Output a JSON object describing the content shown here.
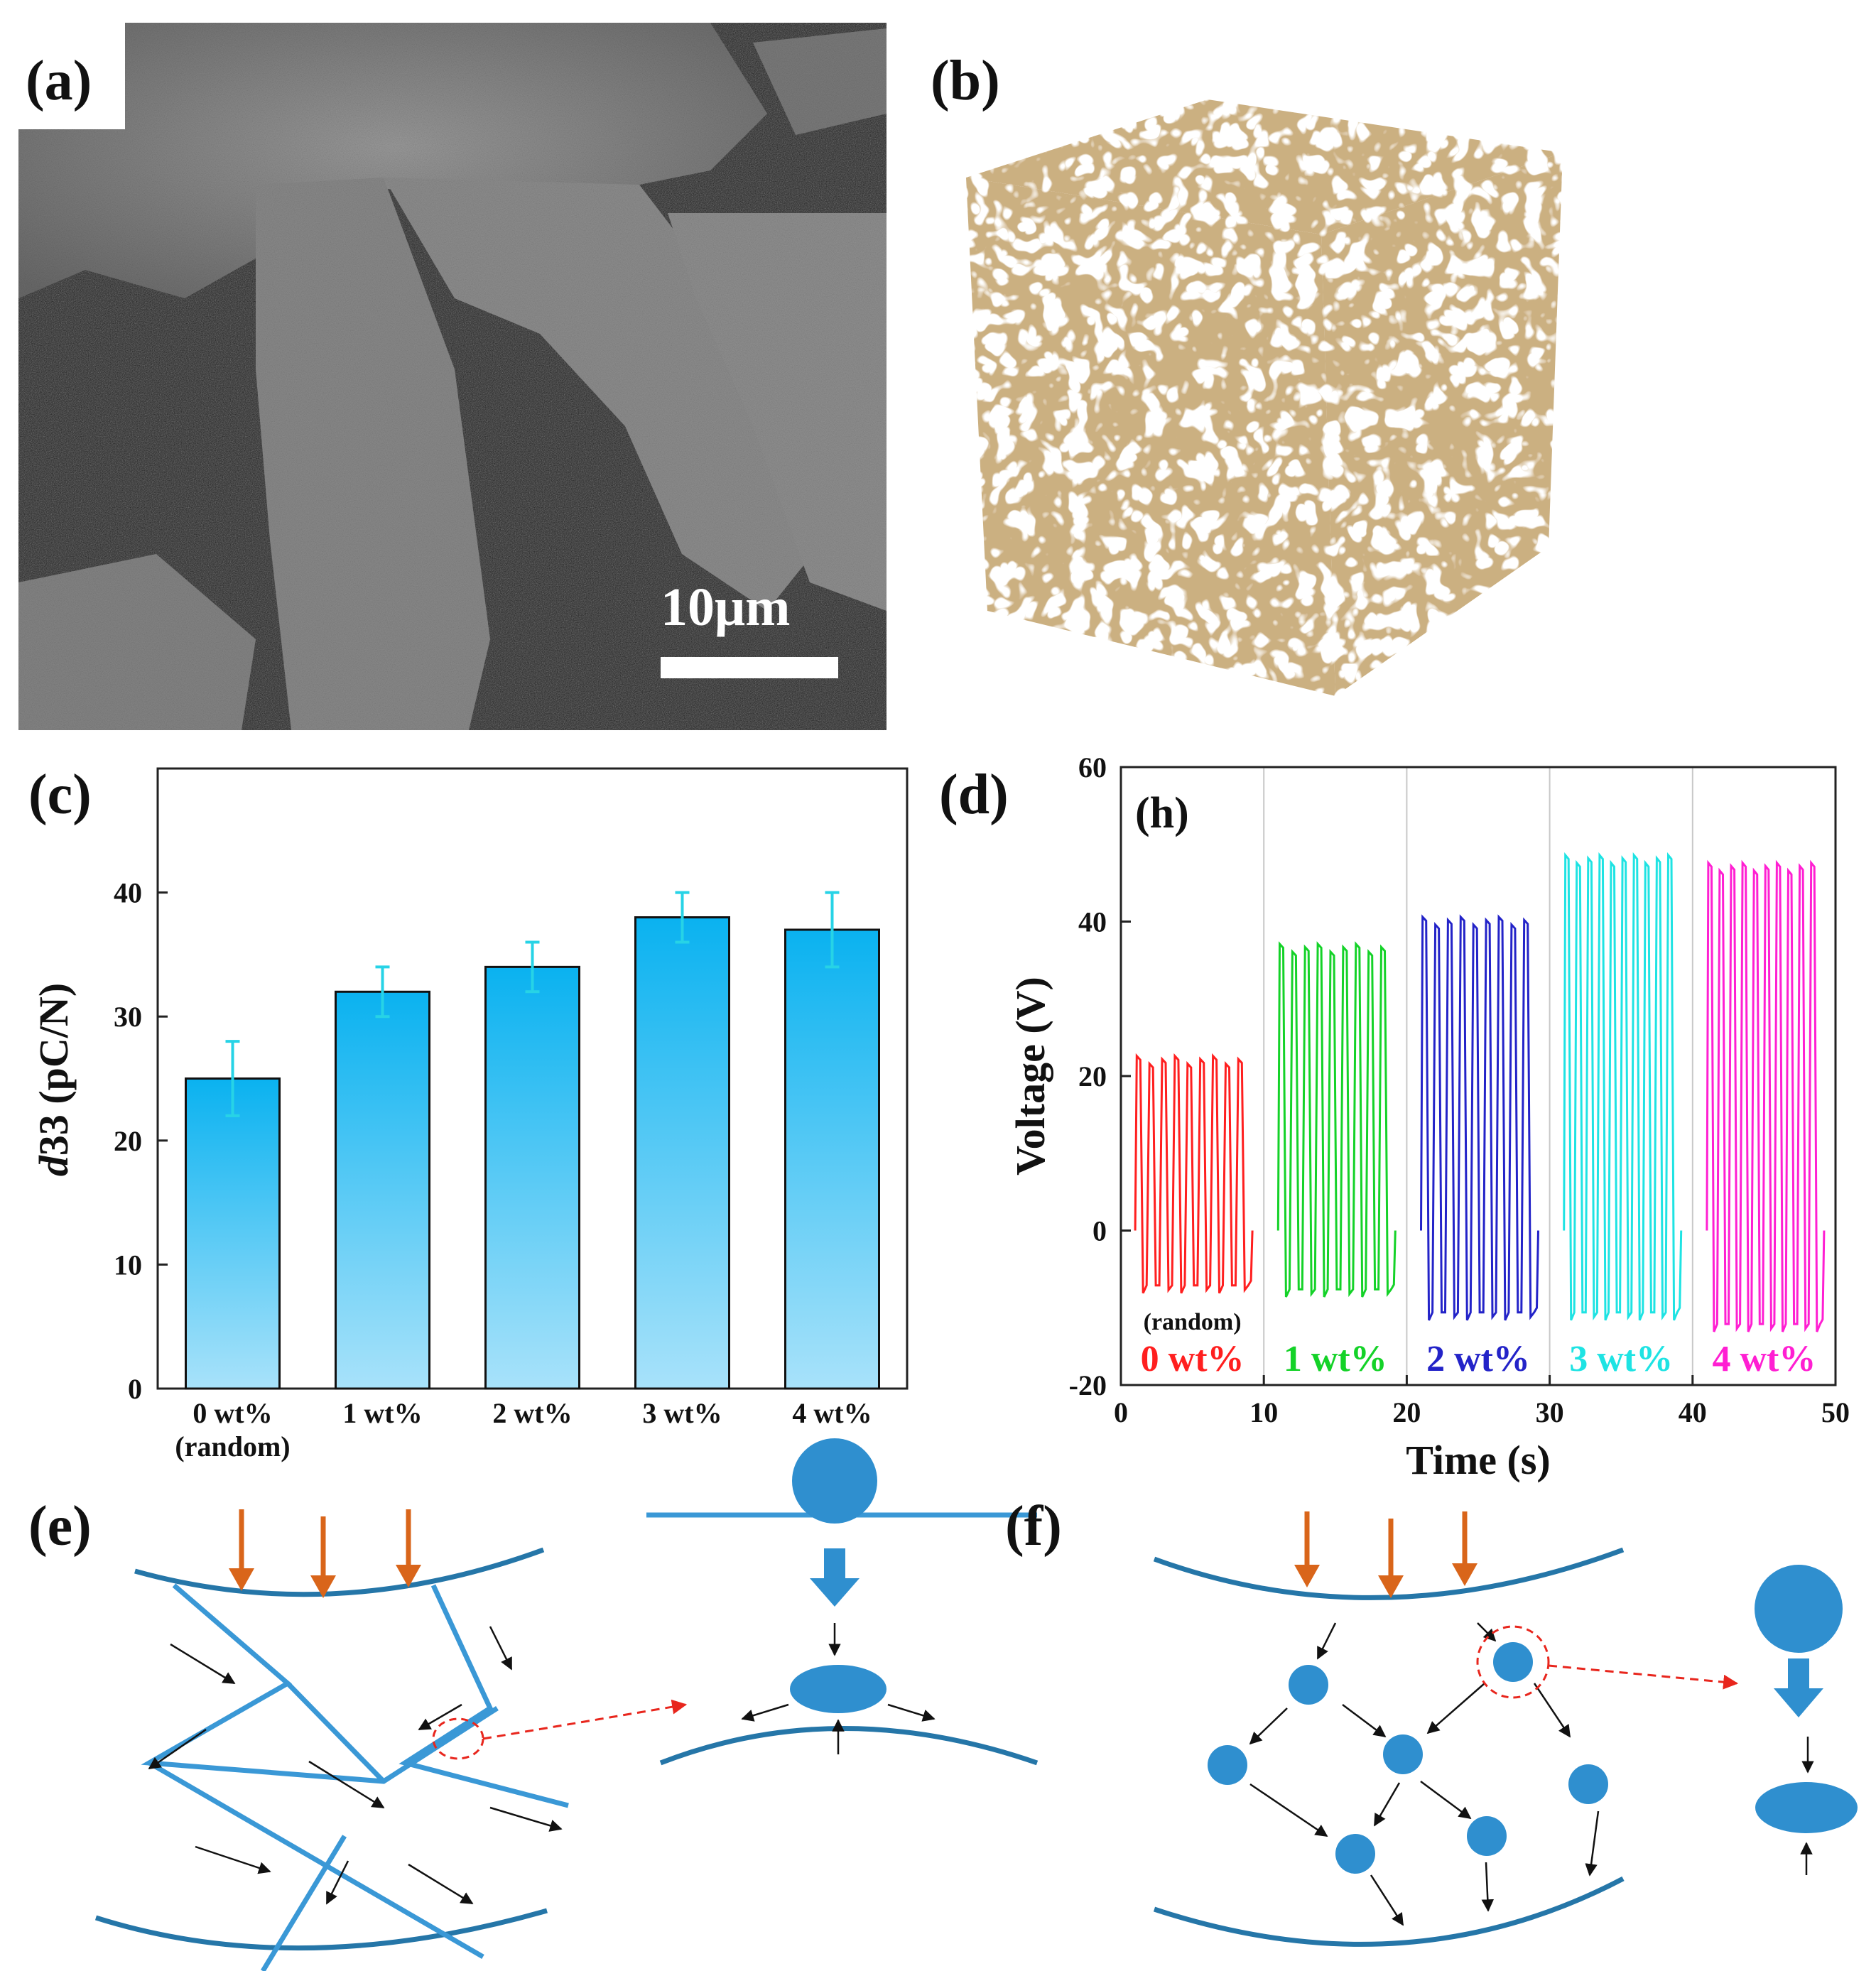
{
  "panels": {
    "a": {
      "label": "(a)",
      "scale_bar": "10μm"
    },
    "b": {
      "label": "(b)"
    },
    "c": {
      "label": "(c)"
    },
    "d": {
      "label": "(d)",
      "inset_label": "(h)"
    },
    "e": {
      "label": "(e)"
    },
    "f": {
      "label": "(f)"
    }
  },
  "colors": {
    "bar_top": "#0ab2f0",
    "bar_bottom": "#a8e2fa",
    "error_bar": "#27d3e6",
    "diagram_blue": "#2f8fcf",
    "diagram_dark": "#2576a8",
    "force_arrow": "#d9651a",
    "highlight": "#e8261d",
    "foam": "#ddb37d"
  },
  "chart_data": [
    {
      "type": "bar",
      "panel": "c",
      "categories": [
        "0 wt%",
        "1 wt%",
        "2 wt%",
        "3 wt%",
        "4 wt%"
      ],
      "category_sublabels": [
        "(random)",
        "",
        "",
        "",
        ""
      ],
      "values": [
        25,
        32,
        34,
        38,
        37
      ],
      "errors": [
        3,
        2,
        2,
        2,
        3
      ],
      "ylabel_italic": "d",
      "ylabel_rest": "33 (pC/N)",
      "ylim": [
        0,
        50
      ],
      "yticks": [
        0,
        10,
        20,
        30,
        40
      ]
    },
    {
      "type": "line",
      "panel": "d",
      "xlabel": "Time (s)",
      "ylabel": "Voltage (V)",
      "xlim": [
        0,
        50
      ],
      "ylim": [
        -20,
        60
      ],
      "xticks": [
        0,
        10,
        20,
        30,
        40,
        50
      ],
      "yticks": [
        -20,
        0,
        20,
        40,
        60
      ],
      "sublabel": "(random)",
      "series": [
        {
          "label": "0 wt%",
          "color": "#ff1f1f",
          "t_start": 1,
          "t_end": 9,
          "peak": 22,
          "trough": -7.5,
          "cycles": 9
        },
        {
          "label": "1 wt%",
          "color": "#14d228",
          "t_start": 11,
          "t_end": 19,
          "peak": 36.5,
          "trough": -8,
          "cycles": 9
        },
        {
          "label": "2 wt%",
          "color": "#2323c8",
          "t_start": 21,
          "t_end": 29,
          "peak": 40,
          "trough": -11,
          "cycles": 9
        },
        {
          "label": "3 wt%",
          "color": "#1ee3e3",
          "t_start": 31,
          "t_end": 39,
          "peak": 48,
          "trough": -11,
          "cycles": 10
        },
        {
          "label": "4 wt%",
          "color": "#ff1fd2",
          "t_start": 41,
          "t_end": 49,
          "peak": 47,
          "trough": -12.5,
          "cycles": 10
        }
      ]
    }
  ]
}
